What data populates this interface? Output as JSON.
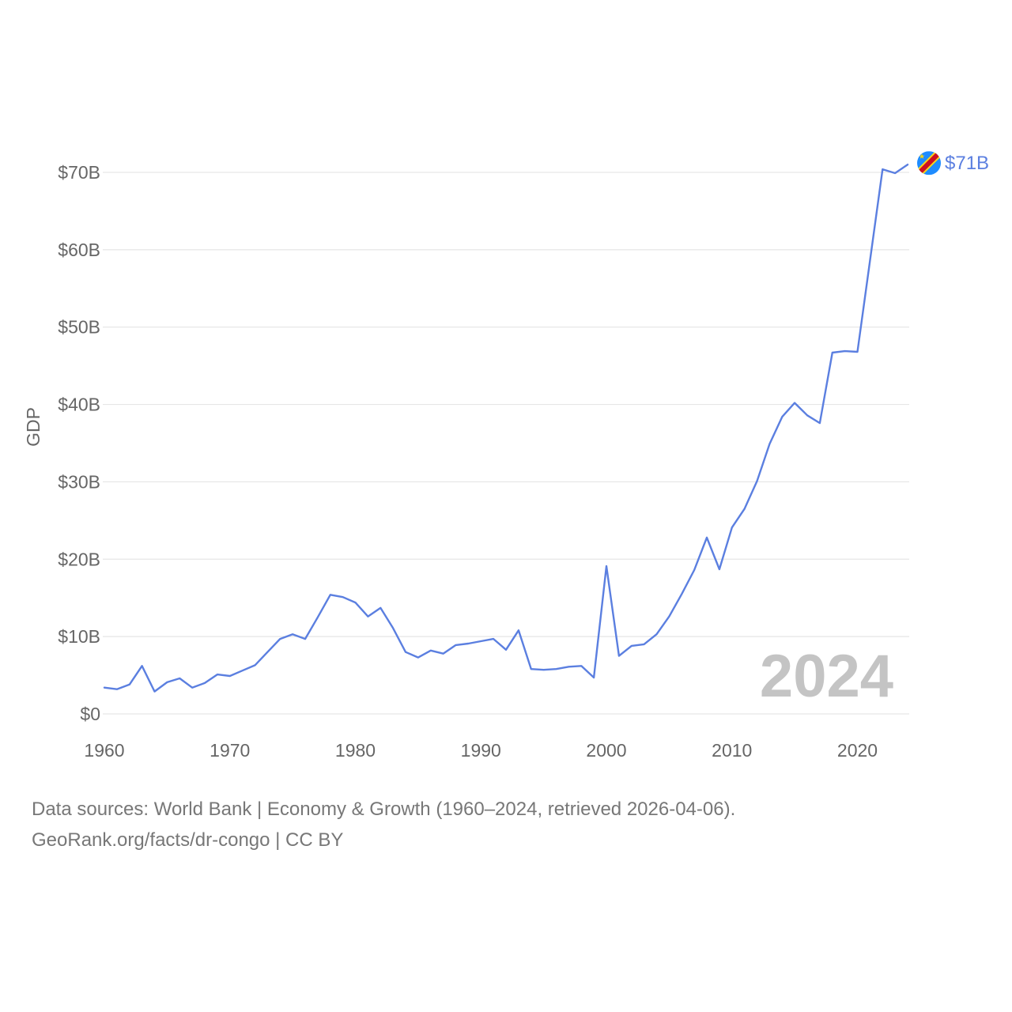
{
  "chart_data": {
    "type": "line",
    "title": "",
    "xlabel": "",
    "ylabel": "GDP",
    "xlim": [
      1960,
      2024
    ],
    "ylim": [
      0,
      70
    ],
    "y_unit": "billion USD",
    "x_ticks": [
      1960,
      1970,
      1980,
      1990,
      2000,
      2010,
      2020
    ],
    "y_ticks": [
      {
        "value": 0,
        "label": "$0"
      },
      {
        "value": 10,
        "label": "$10B"
      },
      {
        "value": 20,
        "label": "$20B"
      },
      {
        "value": 30,
        "label": "$30B"
      },
      {
        "value": 40,
        "label": "$40B"
      },
      {
        "value": 50,
        "label": "$50B"
      },
      {
        "value": 60,
        "label": "$60B"
      },
      {
        "value": 70,
        "label": "$70B"
      }
    ],
    "grid": true,
    "current_year_label": "2024",
    "series": [
      {
        "name": "DR Congo",
        "color": "#5b7fe0",
        "end_label": "$71B",
        "flag_icon": "dr-congo-flag-icon",
        "x": [
          1960,
          1961,
          1962,
          1963,
          1964,
          1965,
          1966,
          1967,
          1968,
          1969,
          1970,
          1971,
          1972,
          1973,
          1974,
          1975,
          1976,
          1977,
          1978,
          1979,
          1980,
          1981,
          1982,
          1983,
          1984,
          1985,
          1986,
          1987,
          1988,
          1989,
          1990,
          1991,
          1992,
          1993,
          1994,
          1995,
          1996,
          1997,
          1998,
          1999,
          2000,
          2001,
          2002,
          2003,
          2004,
          2005,
          2006,
          2007,
          2008,
          2009,
          2010,
          2011,
          2012,
          2013,
          2014,
          2015,
          2016,
          2017,
          2018,
          2019,
          2020,
          2021,
          2022,
          2023,
          2024
        ],
        "values": [
          3.4,
          3.2,
          3.8,
          6.2,
          2.9,
          4.1,
          4.6,
          3.4,
          4.0,
          5.1,
          4.9,
          5.6,
          6.3,
          8.0,
          9.7,
          10.3,
          9.7,
          12.5,
          15.4,
          15.1,
          14.4,
          12.6,
          13.7,
          11.1,
          8.0,
          7.3,
          8.2,
          7.8,
          8.9,
          9.1,
          9.4,
          9.7,
          8.3,
          10.8,
          5.8,
          5.7,
          5.8,
          6.1,
          6.2,
          4.7,
          19.1,
          7.5,
          8.8,
          9.0,
          10.3,
          12.6,
          15.5,
          18.6,
          22.8,
          18.7,
          24.1,
          26.5,
          30.1,
          34.9,
          38.4,
          40.2,
          38.6,
          37.6,
          46.7,
          46.9,
          46.8,
          58.6,
          70.4,
          69.9,
          71.0
        ]
      }
    ]
  },
  "footer": {
    "source_line": "Data sources: World Bank | Economy & Growth (1960–2024, retrieved 2026-04-06).",
    "credit_line": "GeoRank.org/facts/dr-congo | CC BY"
  }
}
